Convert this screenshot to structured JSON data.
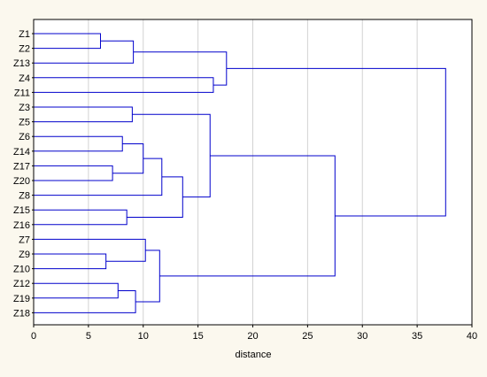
{
  "chart_data": {
    "type": "dendrogram",
    "xlabel": "distance",
    "xlim": [
      0,
      40
    ],
    "xticks": [
      0,
      5,
      10,
      15,
      20,
      25,
      30,
      35,
      40
    ],
    "grid": "vertical",
    "line_color": "#0000CC",
    "labels": [
      "Z1",
      "Z2",
      "Z13",
      "Z4",
      "Z11",
      "Z3",
      "Z5",
      "Z6",
      "Z14",
      "Z17",
      "Z20",
      "Z8",
      "Z15",
      "Z16",
      "Z7",
      "Z9",
      "Z10",
      "Z12",
      "Z19",
      "Z18"
    ],
    "merges": [
      {
        "id": "c1",
        "a": "Z1",
        "b": "Z2",
        "height": 6.1
      },
      {
        "id": "c2",
        "a": "c1",
        "b": "Z13",
        "height": 9.1
      },
      {
        "id": "c3",
        "a": "Z4",
        "b": "Z11",
        "height": 16.4
      },
      {
        "id": "c4",
        "a": "c2",
        "b": "c3",
        "height": 17.6
      },
      {
        "id": "c5",
        "a": "Z3",
        "b": "Z5",
        "height": 9.0
      },
      {
        "id": "c6",
        "a": "Z6",
        "b": "Z14",
        "height": 8.1
      },
      {
        "id": "c7",
        "a": "Z17",
        "b": "Z20",
        "height": 7.2
      },
      {
        "id": "c8",
        "a": "c6",
        "b": "c7",
        "height": 10.0
      },
      {
        "id": "c9",
        "a": "c8",
        "b": "Z8",
        "height": 11.7
      },
      {
        "id": "c10",
        "a": "Z15",
        "b": "Z16",
        "height": 8.5
      },
      {
        "id": "c11",
        "a": "c9",
        "b": "c10",
        "height": 13.6
      },
      {
        "id": "c12",
        "a": "c5",
        "b": "c11",
        "height": 16.1
      },
      {
        "id": "c13",
        "a": "Z9",
        "b": "Z10",
        "height": 6.6
      },
      {
        "id": "c14",
        "a": "Z7",
        "b": "c13",
        "height": 10.2
      },
      {
        "id": "c15",
        "a": "Z12",
        "b": "Z19",
        "height": 7.7
      },
      {
        "id": "c16",
        "a": "c15",
        "b": "Z18",
        "height": 9.3
      },
      {
        "id": "c17",
        "a": "c14",
        "b": "c16",
        "height": 11.5
      },
      {
        "id": "c18",
        "a": "c12",
        "b": "c17",
        "height": 27.5
      },
      {
        "id": "c19",
        "a": "c4",
        "b": "c18",
        "height": 37.6
      }
    ]
  }
}
